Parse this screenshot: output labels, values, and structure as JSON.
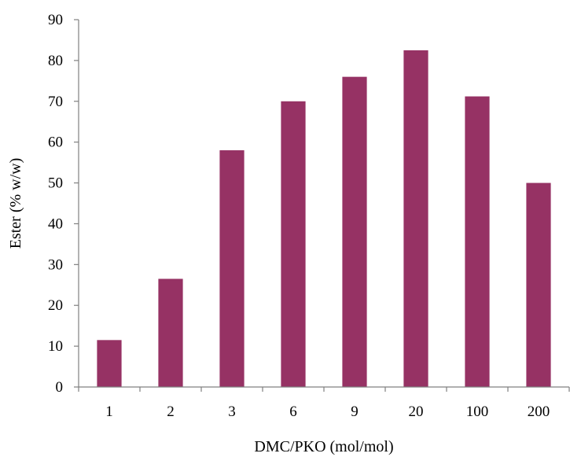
{
  "chart_data": {
    "type": "bar",
    "title": "",
    "xlabel": "DMC/PKO (mol/mol)",
    "ylabel": "Ester (% w/w)",
    "categories": [
      "1",
      "2",
      "3",
      "6",
      "9",
      "20",
      "100",
      "200"
    ],
    "values": [
      11.5,
      26.5,
      58,
      70,
      76,
      82.5,
      71.2,
      50
    ],
    "ylim": [
      0,
      90
    ],
    "yticks": [
      0,
      10,
      20,
      30,
      40,
      50,
      60,
      70,
      80,
      90
    ],
    "grid": false,
    "legend": "none",
    "bar_color": "#963264"
  }
}
